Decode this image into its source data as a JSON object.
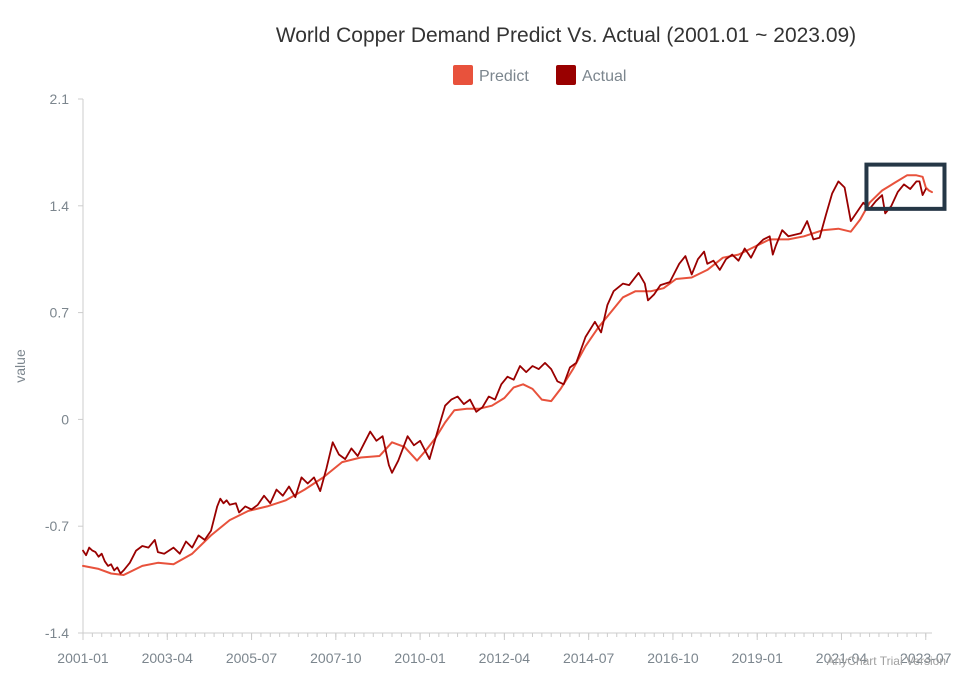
{
  "chart_data": {
    "type": "line",
    "title": "World Copper Demand Predict Vs. Actual (2001.01 ~ 2023.09)",
    "xlabel": "",
    "ylabel": "value",
    "x_ticks": [
      "2001-01",
      "2003-04",
      "2005-07",
      "2007-10",
      "2010-01",
      "2012-04",
      "2014-07",
      "2016-10",
      "2019-01",
      "2021-04",
      "2023-07"
    ],
    "y_ticks": [
      "-1.4",
      "-0.7",
      "0",
      "0.7",
      "1.4",
      "2.1"
    ],
    "ylim": [
      -1.4,
      2.1
    ],
    "x_range": [
      "2001-01",
      "2023-09"
    ],
    "legend": {
      "position": "top-center"
    },
    "grid": false,
    "watermark": "AnyChart Trial Version",
    "series": [
      {
        "name": "Predict",
        "color": "#e8523c",
        "points": [
          [
            "2001-01",
            -0.96
          ],
          [
            "2001-06",
            -0.98
          ],
          [
            "2001-10",
            -1.01
          ],
          [
            "2002-02",
            -1.02
          ],
          [
            "2002-08",
            -0.96
          ],
          [
            "2003-01",
            -0.94
          ],
          [
            "2003-06",
            -0.95
          ],
          [
            "2003-12",
            -0.88
          ],
          [
            "2004-06",
            -0.76
          ],
          [
            "2004-12",
            -0.66
          ],
          [
            "2005-06",
            -0.6
          ],
          [
            "2005-12",
            -0.57
          ],
          [
            "2006-06",
            -0.53
          ],
          [
            "2006-12",
            -0.46
          ],
          [
            "2007-06",
            -0.38
          ],
          [
            "2007-12",
            -0.28
          ],
          [
            "2008-06",
            -0.25
          ],
          [
            "2008-12",
            -0.24
          ],
          [
            "2009-04",
            -0.15
          ],
          [
            "2009-08",
            -0.18
          ],
          [
            "2009-12",
            -0.27
          ],
          [
            "2010-03",
            -0.2
          ],
          [
            "2010-06",
            -0.12
          ],
          [
            "2010-09",
            -0.02
          ],
          [
            "2010-12",
            0.06
          ],
          [
            "2011-04",
            0.07
          ],
          [
            "2011-08",
            0.07
          ],
          [
            "2011-12",
            0.09
          ],
          [
            "2012-04",
            0.14
          ],
          [
            "2012-07",
            0.21
          ],
          [
            "2012-10",
            0.23
          ],
          [
            "2013-01",
            0.2
          ],
          [
            "2013-04",
            0.13
          ],
          [
            "2013-07",
            0.12
          ],
          [
            "2013-10",
            0.2
          ],
          [
            "2014-02",
            0.33
          ],
          [
            "2014-06",
            0.48
          ],
          [
            "2014-10",
            0.6
          ],
          [
            "2015-02",
            0.7
          ],
          [
            "2015-06",
            0.8
          ],
          [
            "2015-10",
            0.84
          ],
          [
            "2016-03",
            0.84
          ],
          [
            "2016-07",
            0.86
          ],
          [
            "2016-11",
            0.92
          ],
          [
            "2017-04",
            0.93
          ],
          [
            "2017-09",
            0.98
          ],
          [
            "2018-02",
            1.06
          ],
          [
            "2018-07",
            1.08
          ],
          [
            "2018-12",
            1.13
          ],
          [
            "2019-05",
            1.18
          ],
          [
            "2019-11",
            1.18
          ],
          [
            "2020-04",
            1.2
          ],
          [
            "2020-10",
            1.24
          ],
          [
            "2021-03",
            1.25
          ],
          [
            "2021-07",
            1.23
          ],
          [
            "2021-10",
            1.31
          ],
          [
            "2022-01",
            1.42
          ],
          [
            "2022-05",
            1.5
          ],
          [
            "2022-09",
            1.55
          ],
          [
            "2023-01",
            1.6
          ],
          [
            "2023-04",
            1.6
          ],
          [
            "2023-06",
            1.59
          ],
          [
            "2023-07",
            1.52
          ],
          [
            "2023-08",
            1.5
          ],
          [
            "2023-09",
            1.49
          ]
        ]
      },
      {
        "name": "Actual",
        "color": "#990000",
        "points": [
          [
            "2001-01",
            -0.86
          ],
          [
            "2001-02",
            -0.89
          ],
          [
            "2001-03",
            -0.84
          ],
          [
            "2001-04",
            -0.86
          ],
          [
            "2001-05",
            -0.87
          ],
          [
            "2001-06",
            -0.9
          ],
          [
            "2001-07",
            -0.88
          ],
          [
            "2001-08",
            -0.93
          ],
          [
            "2001-09",
            -0.96
          ],
          [
            "2001-10",
            -0.95
          ],
          [
            "2001-11",
            -0.99
          ],
          [
            "2001-12",
            -0.97
          ],
          [
            "2002-01",
            -1.01
          ],
          [
            "2002-02",
            -0.99
          ],
          [
            "2002-04",
            -0.94
          ],
          [
            "2002-06",
            -0.86
          ],
          [
            "2002-08",
            -0.83
          ],
          [
            "2002-10",
            -0.84
          ],
          [
            "2002-12",
            -0.79
          ],
          [
            "2003-01",
            -0.87
          ],
          [
            "2003-03",
            -0.88
          ],
          [
            "2003-06",
            -0.84
          ],
          [
            "2003-08",
            -0.88
          ],
          [
            "2003-10",
            -0.8
          ],
          [
            "2003-12",
            -0.84
          ],
          [
            "2004-02",
            -0.76
          ],
          [
            "2004-04",
            -0.79
          ],
          [
            "2004-06",
            -0.73
          ],
          [
            "2004-08",
            -0.57
          ],
          [
            "2004-09",
            -0.52
          ],
          [
            "2004-10",
            -0.55
          ],
          [
            "2004-11",
            -0.53
          ],
          [
            "2004-12",
            -0.56
          ],
          [
            "2005-02",
            -0.55
          ],
          [
            "2005-03",
            -0.61
          ],
          [
            "2005-05",
            -0.57
          ],
          [
            "2005-07",
            -0.59
          ],
          [
            "2005-09",
            -0.56
          ],
          [
            "2005-11",
            -0.5
          ],
          [
            "2006-01",
            -0.55
          ],
          [
            "2006-03",
            -0.46
          ],
          [
            "2006-05",
            -0.5
          ],
          [
            "2006-07",
            -0.44
          ],
          [
            "2006-09",
            -0.51
          ],
          [
            "2006-11",
            -0.38
          ],
          [
            "2007-01",
            -0.42
          ],
          [
            "2007-03",
            -0.38
          ],
          [
            "2007-05",
            -0.47
          ],
          [
            "2007-07",
            -0.32
          ],
          [
            "2007-09",
            -0.15
          ],
          [
            "2007-11",
            -0.23
          ],
          [
            "2008-01",
            -0.26
          ],
          [
            "2008-03",
            -0.19
          ],
          [
            "2008-05",
            -0.24
          ],
          [
            "2008-07",
            -0.16
          ],
          [
            "2008-09",
            -0.08
          ],
          [
            "2008-11",
            -0.14
          ],
          [
            "2009-01",
            -0.11
          ],
          [
            "2009-03",
            -0.3
          ],
          [
            "2009-04",
            -0.35
          ],
          [
            "2009-06",
            -0.27
          ],
          [
            "2009-09",
            -0.11
          ],
          [
            "2009-11",
            -0.17
          ],
          [
            "2010-01",
            -0.14
          ],
          [
            "2010-02",
            -0.18
          ],
          [
            "2010-04",
            -0.26
          ],
          [
            "2010-07",
            -0.05
          ],
          [
            "2010-09",
            0.09
          ],
          [
            "2010-11",
            0.13
          ],
          [
            "2011-01",
            0.15
          ],
          [
            "2011-03",
            0.1
          ],
          [
            "2011-05",
            0.13
          ],
          [
            "2011-07",
            0.05
          ],
          [
            "2011-09",
            0.08
          ],
          [
            "2011-11",
            0.15
          ],
          [
            "2012-01",
            0.13
          ],
          [
            "2012-03",
            0.23
          ],
          [
            "2012-05",
            0.28
          ],
          [
            "2012-07",
            0.26
          ],
          [
            "2012-09",
            0.35
          ],
          [
            "2012-11",
            0.31
          ],
          [
            "2013-01",
            0.35
          ],
          [
            "2013-03",
            0.33
          ],
          [
            "2013-05",
            0.37
          ],
          [
            "2013-07",
            0.33
          ],
          [
            "2013-09",
            0.25
          ],
          [
            "2013-11",
            0.23
          ],
          [
            "2014-01",
            0.34
          ],
          [
            "2014-03",
            0.37
          ],
          [
            "2014-06",
            0.54
          ],
          [
            "2014-09",
            0.64
          ],
          [
            "2014-11",
            0.57
          ],
          [
            "2015-01",
            0.75
          ],
          [
            "2015-03",
            0.84
          ],
          [
            "2015-06",
            0.89
          ],
          [
            "2015-08",
            0.88
          ],
          [
            "2015-11",
            0.96
          ],
          [
            "2016-01",
            0.89
          ],
          [
            "2016-02",
            0.78
          ],
          [
            "2016-04",
            0.82
          ],
          [
            "2016-06",
            0.88
          ],
          [
            "2016-09",
            0.9
          ],
          [
            "2016-12",
            1.02
          ],
          [
            "2017-02",
            1.07
          ],
          [
            "2017-04",
            0.95
          ],
          [
            "2017-06",
            1.05
          ],
          [
            "2017-08",
            1.1
          ],
          [
            "2017-09",
            1.02
          ],
          [
            "2017-11",
            1.04
          ],
          [
            "2018-01",
            0.98
          ],
          [
            "2018-03",
            1.05
          ],
          [
            "2018-05",
            1.08
          ],
          [
            "2018-07",
            1.04
          ],
          [
            "2018-09",
            1.12
          ],
          [
            "2018-11",
            1.06
          ],
          [
            "2019-01",
            1.14
          ],
          [
            "2019-03",
            1.18
          ],
          [
            "2019-05",
            1.2
          ],
          [
            "2019-06",
            1.08
          ],
          [
            "2019-07",
            1.14
          ],
          [
            "2019-09",
            1.24
          ],
          [
            "2019-11",
            1.2
          ],
          [
            "2020-01",
            1.21
          ],
          [
            "2020-03",
            1.22
          ],
          [
            "2020-05",
            1.3
          ],
          [
            "2020-07",
            1.18
          ],
          [
            "2020-09",
            1.19
          ],
          [
            "2020-11",
            1.34
          ],
          [
            "2021-01",
            1.48
          ],
          [
            "2021-03",
            1.56
          ],
          [
            "2021-05",
            1.52
          ],
          [
            "2021-07",
            1.3
          ],
          [
            "2021-09",
            1.36
          ],
          [
            "2021-11",
            1.42
          ],
          [
            "2022-01",
            1.38
          ],
          [
            "2022-03",
            1.43
          ],
          [
            "2022-05",
            1.47
          ],
          [
            "2022-06",
            1.35
          ],
          [
            "2022-08",
            1.4
          ],
          [
            "2022-10",
            1.49
          ],
          [
            "2022-12",
            1.54
          ],
          [
            "2023-02",
            1.51
          ],
          [
            "2023-04",
            1.56
          ],
          [
            "2023-05",
            1.56
          ],
          [
            "2023-06",
            1.47
          ],
          [
            "2023-07",
            1.51
          ]
        ]
      }
    ],
    "annotations": [
      {
        "type": "rectangle",
        "from": [
          "2021-12",
          1.67
        ],
        "to": [
          "2024-01",
          1.38
        ],
        "color": "#253746"
      }
    ]
  }
}
